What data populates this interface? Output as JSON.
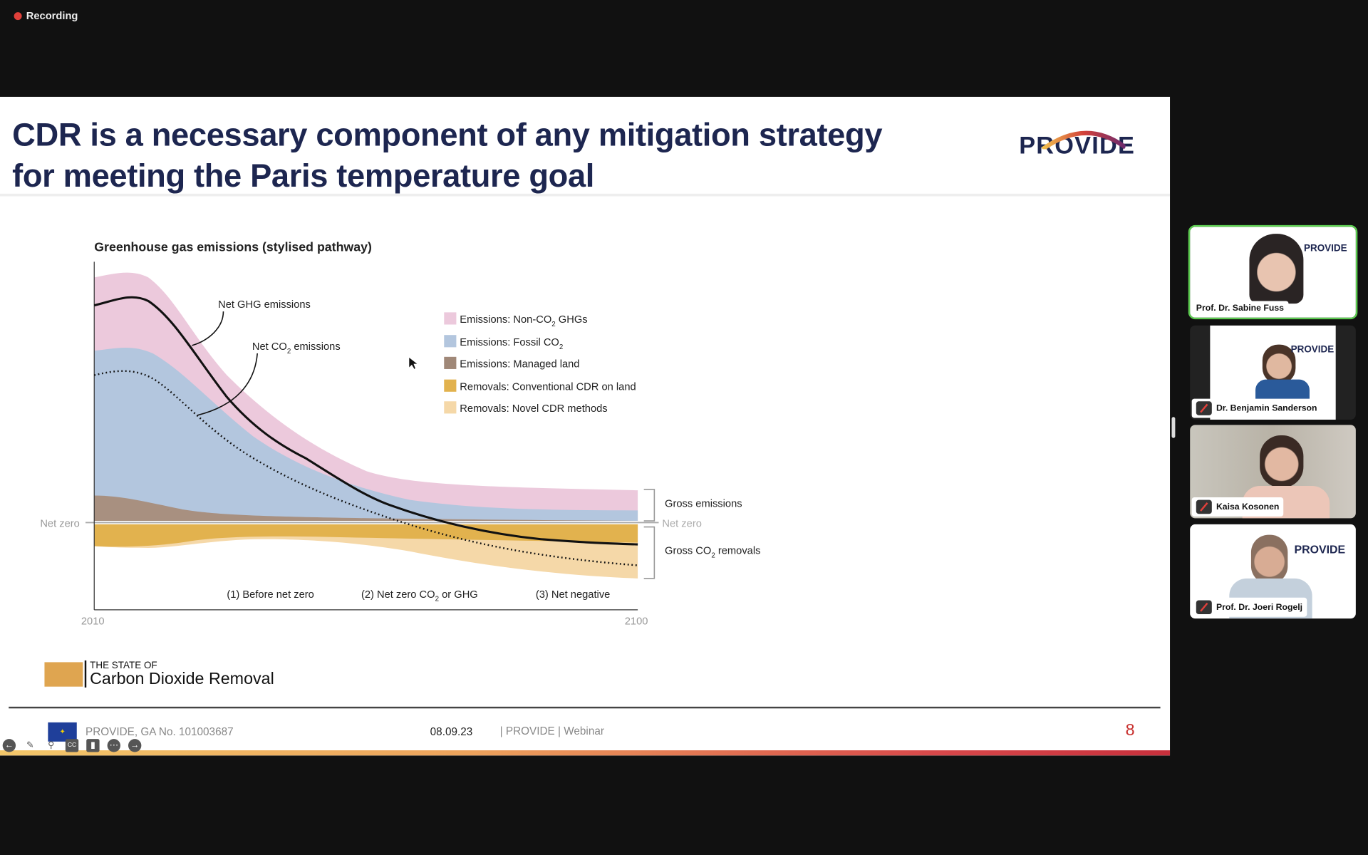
{
  "recording": {
    "label": "Recording"
  },
  "slide": {
    "title_line1": "CDR is a necessary component of any mitigation strategy",
    "title_line2": "for meeting the Paris temperature goal",
    "logo_text": "PROVIDE",
    "chart": {
      "title": "Greenhouse gas emissions (stylised pathway)",
      "net_ghg_label": "Net GHG emissions",
      "net_co2_label": {
        "pre": "Net CO",
        "sub": "2",
        "post": " emissions"
      },
      "legend": [
        {
          "label": "Emissions: Non-CO",
          "sub": "2",
          "post": " GHGs",
          "color": "#ecc9dc"
        },
        {
          "label": "Emissions: Fossil CO",
          "sub": "2",
          "post": "",
          "color": "#b3c6de"
        },
        {
          "label": "Emissions: Managed land",
          "sub": "",
          "post": "",
          "color": "#a08878"
        },
        {
          "label": "Removals: Conventional CDR on land",
          "sub": "",
          "post": "",
          "color": "#e2b24e"
        },
        {
          "label": "Removals: Novel CDR methods",
          "sub": "",
          "post": "",
          "color": "#f5d8a8"
        }
      ],
      "net_zero_left": "Net zero",
      "net_zero_right": "Net zero",
      "gross_emissions": "Gross emissions",
      "gross_removals": {
        "pre": "Gross CO",
        "sub": "2",
        "post": " removals"
      },
      "phases": [
        "(1) Before net zero",
        "(2) Net zero CO",
        "2",
        " or GHG",
        "(3) Net negative"
      ],
      "x_start": "2010",
      "x_end": "2100"
    },
    "brand": {
      "small": "THE STATE OF",
      "large": "Carbon Dioxide Removal"
    },
    "footer": {
      "grant": "PROVIDE, GA No. 101003687",
      "date": "08.09.23",
      "event": "| PROVIDE | Webinar",
      "page": "8"
    }
  },
  "participants": [
    {
      "name": "Prof. Dr. Sabine Fuss",
      "muted": false,
      "active": true
    },
    {
      "name": "Dr. Benjamin Sanderson",
      "muted": true
    },
    {
      "name": "Kaisa Kosonen",
      "muted": true
    },
    {
      "name": "Prof. Dr. Joeri Rogelj",
      "muted": true
    }
  ]
}
